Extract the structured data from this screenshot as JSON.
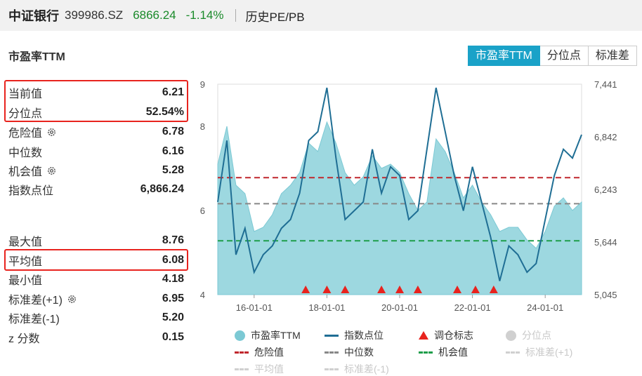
{
  "header": {
    "name": "中证银行",
    "code": "399986.SZ",
    "price": "6866.24",
    "change": "-1.14%",
    "history_link": "历史PE/PB"
  },
  "metric_title": "市盈率TTM",
  "tabs": [
    {
      "label": "市盈率TTM",
      "active": true
    },
    {
      "label": "分位点",
      "active": false
    },
    {
      "label": "标准差",
      "active": false
    }
  ],
  "stats": {
    "current": {
      "label": "当前值",
      "value": "6.21"
    },
    "percentile": {
      "label": "分位点",
      "value": "52.54%"
    },
    "danger": {
      "label": "危险值",
      "value": "6.78"
    },
    "median": {
      "label": "中位数",
      "value": "6.16"
    },
    "chance": {
      "label": "机会值",
      "value": "5.28"
    },
    "index_points": {
      "label": "指数点位",
      "value": "6,866.24"
    },
    "max": {
      "label": "最大值",
      "value": "8.76"
    },
    "avg": {
      "label": "平均值",
      "value": "6.08"
    },
    "min": {
      "label": "最小值",
      "value": "4.18"
    },
    "std_plus": {
      "label": "标准差(+1)",
      "value": "6.95"
    },
    "std_minus": {
      "label": "标准差(-1)",
      "value": "5.20"
    },
    "zscore": {
      "label": "z 分数",
      "value": "0.15"
    }
  },
  "legend": {
    "pe": "市盈率TTM",
    "index": "指数点位",
    "rebalance": "调仓标志",
    "percentile": "分位点",
    "danger": "危险值",
    "median": "中位数",
    "chance": "机会值",
    "std_plus": "标准差(+1)",
    "avg": "平均值",
    "std_minus": "标准差(-1)"
  },
  "colors": {
    "accent": "#1aa2c8",
    "area_fill": "#9dd8e0",
    "area_line": "#7cc9d4",
    "index_line": "#1f6e94",
    "danger": "#c0272d",
    "median": "#888888",
    "chance": "#1e9e4a",
    "highlight": "#e8231e",
    "positive": "#1a8a2a"
  },
  "chart_data": {
    "type": "area",
    "left_axis_ticks": [
      "9",
      "8",
      "6",
      "4"
    ],
    "right_axis_ticks": [
      "7,441",
      "6,842",
      "6,243",
      "5,644",
      "5,045"
    ],
    "x_ticks": [
      "16-01-01",
      "18-01-01",
      "20-01-01",
      "22-01-01",
      "24-01-01"
    ],
    "ylim_left": [
      4,
      9
    ],
    "ylim_right": [
      5045,
      7441
    ],
    "reference_lines": {
      "danger": 6.78,
      "median": 6.16,
      "chance": 5.28
    },
    "rebalance_markers": [
      "2017-06",
      "2018-01",
      "2018-07",
      "2019-07",
      "2020-01",
      "2020-07",
      "2021-08",
      "2022-02",
      "2022-08"
    ],
    "series": [
      {
        "name": "市盈率TTM",
        "x": [
          "2015-01",
          "2015-04",
          "2015-07",
          "2015-10",
          "2016-01",
          "2016-04",
          "2016-07",
          "2016-10",
          "2017-01",
          "2017-04",
          "2017-07",
          "2017-10",
          "2018-01",
          "2018-04",
          "2018-07",
          "2018-10",
          "2019-01",
          "2019-04",
          "2019-07",
          "2019-10",
          "2020-01",
          "2020-04",
          "2020-07",
          "2020-10",
          "2021-01",
          "2021-04",
          "2021-07",
          "2021-10",
          "2022-01",
          "2022-04",
          "2022-07",
          "2022-10",
          "2023-01",
          "2023-04",
          "2023-07",
          "2023-10",
          "2024-01",
          "2024-04",
          "2024-07",
          "2024-10",
          "2025-01"
        ],
        "values": [
          7.1,
          8.0,
          6.6,
          6.4,
          5.5,
          5.6,
          5.9,
          6.4,
          6.6,
          6.9,
          7.6,
          7.4,
          8.1,
          7.6,
          6.9,
          6.6,
          6.8,
          7.3,
          7.0,
          7.1,
          6.9,
          6.4,
          6.0,
          6.2,
          7.7,
          7.4,
          6.9,
          6.3,
          6.6,
          6.2,
          5.9,
          5.5,
          5.6,
          5.6,
          5.3,
          5.1,
          5.5,
          6.1,
          6.3,
          6.0,
          6.2
        ]
      },
      {
        "name": "指数点位",
        "x": [
          "2015-01",
          "2015-04",
          "2015-07",
          "2015-10",
          "2016-01",
          "2016-04",
          "2016-07",
          "2016-10",
          "2017-01",
          "2017-04",
          "2017-07",
          "2017-10",
          "2018-01",
          "2018-04",
          "2018-07",
          "2018-10",
          "2019-01",
          "2019-04",
          "2019-07",
          "2019-10",
          "2020-01",
          "2020-04",
          "2020-07",
          "2020-10",
          "2021-01",
          "2021-04",
          "2021-07",
          "2021-10",
          "2022-01",
          "2022-04",
          "2022-07",
          "2022-10",
          "2023-01",
          "2023-04",
          "2023-07",
          "2023-10",
          "2024-01",
          "2024-04",
          "2024-07",
          "2024-10",
          "2025-01"
        ],
        "values": [
          6100,
          6800,
          5500,
          5800,
          5300,
          5500,
          5600,
          5800,
          5900,
          6200,
          6800,
          6900,
          7400,
          6600,
          5900,
          6000,
          6100,
          6700,
          6200,
          6500,
          6400,
          5900,
          6000,
          6700,
          7400,
          6900,
          6400,
          6000,
          6500,
          6100,
          5700,
          5200,
          5600,
          5500,
          5300,
          5400,
          5900,
          6400,
          6700,
          6600,
          6866
        ]
      }
    ]
  }
}
